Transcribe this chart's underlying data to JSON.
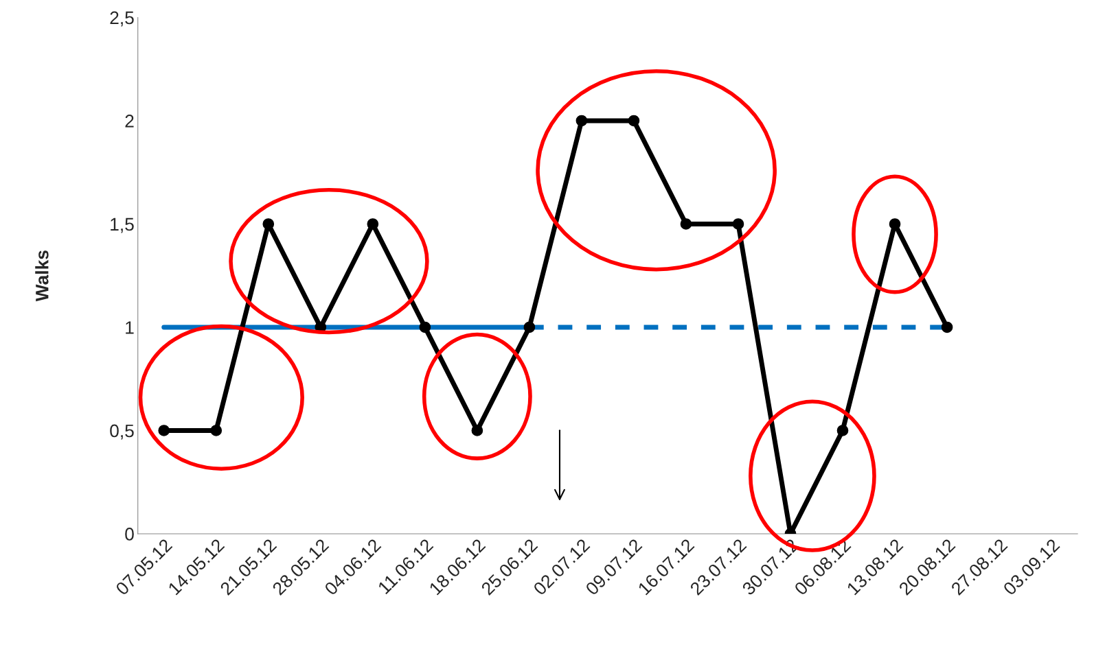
{
  "chart_data": {
    "type": "line",
    "ylabel": "Walks",
    "categories": [
      "07.05.12",
      "14.05.12",
      "21.05.12",
      "28.05.12",
      "04.06.12",
      "11.06.12",
      "18.06.12",
      "25.06.12",
      "02.07.12",
      "09.07.12",
      "16.07.12",
      "23.07.12",
      "30.07.12",
      "06.08.12",
      "13.08.12",
      "20.08.12",
      "27.08.12",
      "03.09.12"
    ],
    "series": [
      {
        "color": "#000000",
        "marker": "circle",
        "line_style": "solid",
        "values": [
          0.5,
          0.5,
          1.5,
          1,
          1.5,
          1,
          0.5,
          1,
          2,
          2,
          1.5,
          1.5,
          0,
          0.5,
          1.5,
          1,
          null,
          null
        ]
      },
      {
        "color": "#0070c0",
        "marker": "none",
        "line_style": "solid",
        "values": [
          1,
          1,
          1,
          1,
          1,
          1,
          1,
          1,
          null,
          null,
          null,
          null,
          null,
          null,
          null,
          null,
          null,
          null
        ]
      },
      {
        "color": "#0070c0",
        "marker": "none",
        "line_style": "dashed",
        "values": [
          null,
          null,
          null,
          null,
          null,
          null,
          null,
          1,
          1,
          1,
          1,
          1,
          1,
          1,
          1,
          1,
          null,
          null
        ]
      }
    ],
    "ylim": [
      0,
      2.5
    ],
    "yticks": [
      0,
      {
        "value": 0.5,
        "label": "0,5"
      },
      1,
      {
        "value": 1.5,
        "label": "1,5"
      },
      2,
      {
        "value": 2.5,
        "label": "2,5"
      }
    ],
    "grid": false,
    "legend": false
  }
}
